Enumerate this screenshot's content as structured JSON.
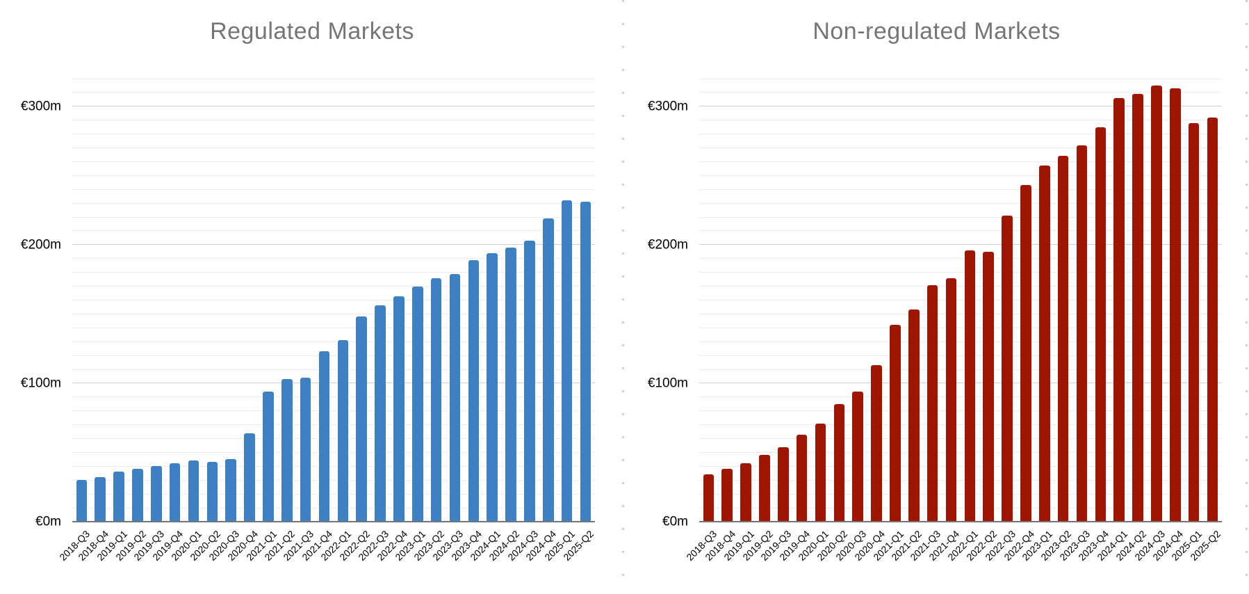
{
  "page": {
    "background": "#ffffff"
  },
  "styles": {
    "title_color": "#757575",
    "axis_text_color": "#000000",
    "minor_grid_color": "#ececec",
    "major_grid_color": "#cfcfcf",
    "baseline_color": "#757575",
    "guide_dash_color": "#cfcfcf"
  },
  "chart_data": [
    {
      "type": "bar",
      "title": "Regulated Markets",
      "bar_color": "#3d80c3",
      "currency_prefix": "€",
      "unit_suffix": "m",
      "grid": true,
      "legend_position": "none",
      "ylim": [
        0,
        320
      ],
      "minor_grid_step": 10,
      "y_ticks": [
        {
          "value": 0,
          "label": "€0m"
        },
        {
          "value": 100,
          "label": "€100m"
        },
        {
          "value": 200,
          "label": "€200m"
        },
        {
          "value": 300,
          "label": "€300m"
        }
      ],
      "categories": [
        "2018-Q3",
        "2018-Q4",
        "2019-Q1",
        "2019-Q2",
        "2019-Q3",
        "2019-Q4",
        "2020-Q1",
        "2020-Q2",
        "2020-Q3",
        "2020-Q4",
        "2021-Q1",
        "2021-Q2",
        "2021-Q3",
        "2021-Q4",
        "2022-Q1",
        "2022-Q2",
        "2022-Q3",
        "2022-Q4",
        "2023-Q1",
        "2023-Q2",
        "2023-Q3",
        "2023-Q4",
        "2024-Q1",
        "2024-Q2",
        "2024-Q3",
        "2024-Q4",
        "2025-Q1",
        "2025-Q2"
      ],
      "values": [
        30,
        32,
        36,
        38,
        40,
        42,
        44,
        43,
        45,
        64,
        94,
        103,
        104,
        123,
        131,
        148,
        156,
        163,
        170,
        176,
        179,
        189,
        194,
        198,
        203,
        219,
        232,
        231
      ]
    },
    {
      "type": "bar",
      "title": "Non-regulated Markets",
      "bar_color": "#9e1602",
      "currency_prefix": "€",
      "unit_suffix": "m",
      "grid": true,
      "legend_position": "none",
      "ylim": [
        0,
        320
      ],
      "minor_grid_step": 10,
      "y_ticks": [
        {
          "value": 0,
          "label": "€0m"
        },
        {
          "value": 100,
          "label": "€100m"
        },
        {
          "value": 200,
          "label": "€200m"
        },
        {
          "value": 300,
          "label": "€300m"
        }
      ],
      "categories": [
        "2018-Q3",
        "2018-Q4",
        "2019-Q1",
        "2019-Q2",
        "2019-Q3",
        "2019-Q4",
        "2020-Q1",
        "2020-Q2",
        "2020-Q3",
        "2020-Q4",
        "2021-Q1",
        "2021-Q2",
        "2021-Q3",
        "2021-Q4",
        "2022-Q1",
        "2022-Q2",
        "2022-Q3",
        "2022-Q4",
        "2023-Q1",
        "2023-Q2",
        "2023-Q3",
        "2023-Q4",
        "2024-Q1",
        "2024-Q2",
        "2024-Q3",
        "2024-Q4",
        "2025-Q1",
        "2025-Q2"
      ],
      "values": [
        34,
        38,
        42,
        48,
        54,
        63,
        71,
        85,
        94,
        113,
        142,
        153,
        171,
        176,
        196,
        195,
        221,
        243,
        257,
        264,
        272,
        285,
        306,
        309,
        315,
        313,
        288,
        292
      ]
    }
  ]
}
